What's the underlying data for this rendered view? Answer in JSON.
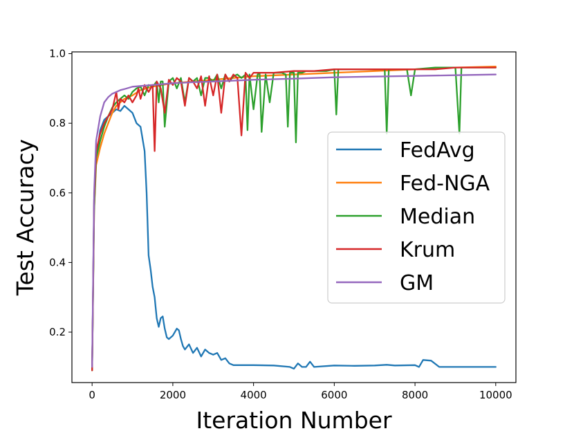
{
  "chart_data": {
    "type": "line",
    "title": "",
    "xlabel": "Iteration Number",
    "ylabel": "Test Accuracy",
    "xlim": [
      -500,
      10500
    ],
    "ylim": [
      0.055,
      1.005
    ],
    "xticks": [
      0,
      2000,
      4000,
      6000,
      8000,
      10000
    ],
    "xtick_labels": [
      "0",
      "2000",
      "4000",
      "6000",
      "8000",
      "10000"
    ],
    "yticks": [
      0.2,
      0.4,
      0.6,
      0.8,
      1.0
    ],
    "ytick_labels": [
      "0.2",
      "0.4",
      "0.6",
      "0.8",
      "1.0"
    ],
    "grid": false,
    "legend_position": "center-right",
    "series": [
      {
        "name": "FedAvg",
        "color": "#1f77b4",
        "x": [
          0,
          50,
          100,
          200,
          300,
          400,
          500,
          600,
          700,
          800,
          900,
          1000,
          1100,
          1200,
          1300,
          1350,
          1400,
          1450,
          1500,
          1550,
          1600,
          1650,
          1700,
          1750,
          1800,
          1850,
          1900,
          2000,
          2100,
          2150,
          2200,
          2250,
          2300,
          2400,
          2500,
          2600,
          2700,
          2800,
          2900,
          3000,
          3100,
          3200,
          3300,
          3400,
          3500,
          3700,
          4000,
          4500,
          4900,
          5000,
          5100,
          5200,
          5300,
          5400,
          5500,
          6000,
          6500,
          7000,
          7300,
          7500,
          8000,
          8100,
          8200,
          8400,
          8600,
          9000,
          9500,
          10000
        ],
        "values": [
          0.09,
          0.58,
          0.7,
          0.78,
          0.81,
          0.82,
          0.83,
          0.84,
          0.835,
          0.85,
          0.84,
          0.83,
          0.8,
          0.79,
          0.72,
          0.6,
          0.42,
          0.38,
          0.33,
          0.3,
          0.24,
          0.215,
          0.24,
          0.245,
          0.21,
          0.185,
          0.18,
          0.19,
          0.21,
          0.205,
          0.18,
          0.16,
          0.15,
          0.165,
          0.14,
          0.155,
          0.13,
          0.15,
          0.14,
          0.135,
          0.14,
          0.12,
          0.125,
          0.11,
          0.105,
          0.105,
          0.105,
          0.104,
          0.1,
          0.095,
          0.11,
          0.1,
          0.1,
          0.115,
          0.1,
          0.104,
          0.103,
          0.104,
          0.106,
          0.104,
          0.105,
          0.1,
          0.12,
          0.118,
          0.1,
          0.1,
          0.1,
          0.1
        ]
      },
      {
        "name": "Fed-NGA",
        "color": "#ff7f0e",
        "x": [
          0,
          50,
          100,
          200,
          300,
          400,
          500,
          600,
          700,
          800,
          1000,
          1200,
          1500,
          2000,
          2500,
          3000,
          3500,
          4000,
          5000,
          6000,
          7000,
          8000,
          9000,
          10000
        ],
        "values": [
          0.09,
          0.55,
          0.68,
          0.73,
          0.77,
          0.8,
          0.83,
          0.85,
          0.86,
          0.87,
          0.88,
          0.895,
          0.905,
          0.915,
          0.92,
          0.925,
          0.93,
          0.935,
          0.94,
          0.945,
          0.95,
          0.955,
          0.96,
          0.963
        ]
      },
      {
        "name": "Median",
        "color": "#2ca02c",
        "x": [
          0,
          50,
          100,
          200,
          300,
          400,
          500,
          600,
          700,
          800,
          900,
          1000,
          1100,
          1200,
          1300,
          1400,
          1500,
          1600,
          1650,
          1700,
          1750,
          1800,
          1900,
          2000,
          2100,
          2200,
          2300,
          2400,
          2500,
          2600,
          2700,
          2800,
          2900,
          3000,
          3100,
          3200,
          3300,
          3400,
          3500,
          3600,
          3700,
          3800,
          3850,
          3900,
          4000,
          4100,
          4150,
          4200,
          4300,
          4400,
          4500,
          4600,
          4700,
          4800,
          4850,
          4900,
          5000,
          5050,
          5100,
          5200,
          5300,
          5400,
          5500,
          5600,
          5800,
          6000,
          6050,
          6100,
          6300,
          6500,
          7000,
          7250,
          7300,
          7350,
          7500,
          7800,
          7900,
          8000,
          8500,
          9000,
          9100,
          9150,
          9200,
          9500,
          10000
        ],
        "values": [
          0.09,
          0.55,
          0.7,
          0.75,
          0.79,
          0.82,
          0.845,
          0.86,
          0.87,
          0.88,
          0.87,
          0.89,
          0.9,
          0.905,
          0.88,
          0.91,
          0.905,
          0.92,
          0.86,
          0.92,
          0.92,
          0.79,
          0.92,
          0.93,
          0.9,
          0.93,
          0.86,
          0.93,
          0.92,
          0.93,
          0.88,
          0.93,
          0.93,
          0.92,
          0.94,
          0.9,
          0.94,
          0.92,
          0.935,
          0.94,
          0.93,
          0.94,
          0.78,
          0.94,
          0.84,
          0.94,
          0.945,
          0.775,
          0.94,
          0.86,
          0.945,
          0.945,
          0.945,
          0.94,
          0.79,
          0.945,
          0.945,
          0.745,
          0.945,
          0.945,
          0.95,
          0.95,
          0.95,
          0.95,
          0.95,
          0.955,
          0.825,
          0.955,
          0.955,
          0.955,
          0.955,
          0.955,
          0.77,
          0.955,
          0.955,
          0.955,
          0.88,
          0.955,
          0.96,
          0.96,
          0.77,
          0.96,
          0.96,
          0.96,
          0.96
        ]
      },
      {
        "name": "Krum",
        "color": "#d62728",
        "x": [
          0,
          50,
          100,
          200,
          300,
          400,
          500,
          600,
          650,
          700,
          800,
          900,
          1000,
          1100,
          1150,
          1200,
          1300,
          1400,
          1500,
          1550,
          1600,
          1700,
          1800,
          1900,
          2000,
          2100,
          2200,
          2300,
          2400,
          2500,
          2600,
          2700,
          2800,
          2900,
          3000,
          3100,
          3200,
          3300,
          3400,
          3500,
          3600,
          3700,
          3800,
          3900,
          4000,
          4200,
          4500,
          5000,
          5500,
          6000,
          6500,
          7000,
          7500,
          8000,
          8500,
          9000,
          9500,
          10000
        ],
        "values": [
          0.09,
          0.58,
          0.72,
          0.77,
          0.8,
          0.82,
          0.84,
          0.89,
          0.84,
          0.87,
          0.86,
          0.88,
          0.86,
          0.88,
          0.9,
          0.87,
          0.91,
          0.89,
          0.91,
          0.72,
          0.92,
          0.9,
          0.83,
          0.925,
          0.91,
          0.93,
          0.92,
          0.85,
          0.93,
          0.92,
          0.9,
          0.935,
          0.85,
          0.935,
          0.88,
          0.94,
          0.83,
          0.94,
          0.92,
          0.94,
          0.93,
          0.765,
          0.945,
          0.93,
          0.945,
          0.945,
          0.945,
          0.95,
          0.95,
          0.955,
          0.955,
          0.955,
          0.955,
          0.955,
          0.955,
          0.96,
          0.96,
          0.96
        ]
      },
      {
        "name": "GM",
        "color": "#9467bd",
        "x": [
          0,
          50,
          100,
          200,
          300,
          400,
          500,
          600,
          700,
          800,
          1000,
          1500,
          2000,
          2500,
          3000,
          4000,
          5000,
          6000,
          7000,
          8000,
          9000,
          10000
        ],
        "values": [
          0.1,
          0.6,
          0.75,
          0.82,
          0.86,
          0.875,
          0.885,
          0.89,
          0.895,
          0.898,
          0.905,
          0.91,
          0.915,
          0.918,
          0.92,
          0.925,
          0.928,
          0.932,
          0.934,
          0.936,
          0.938,
          0.94
        ]
      }
    ]
  }
}
